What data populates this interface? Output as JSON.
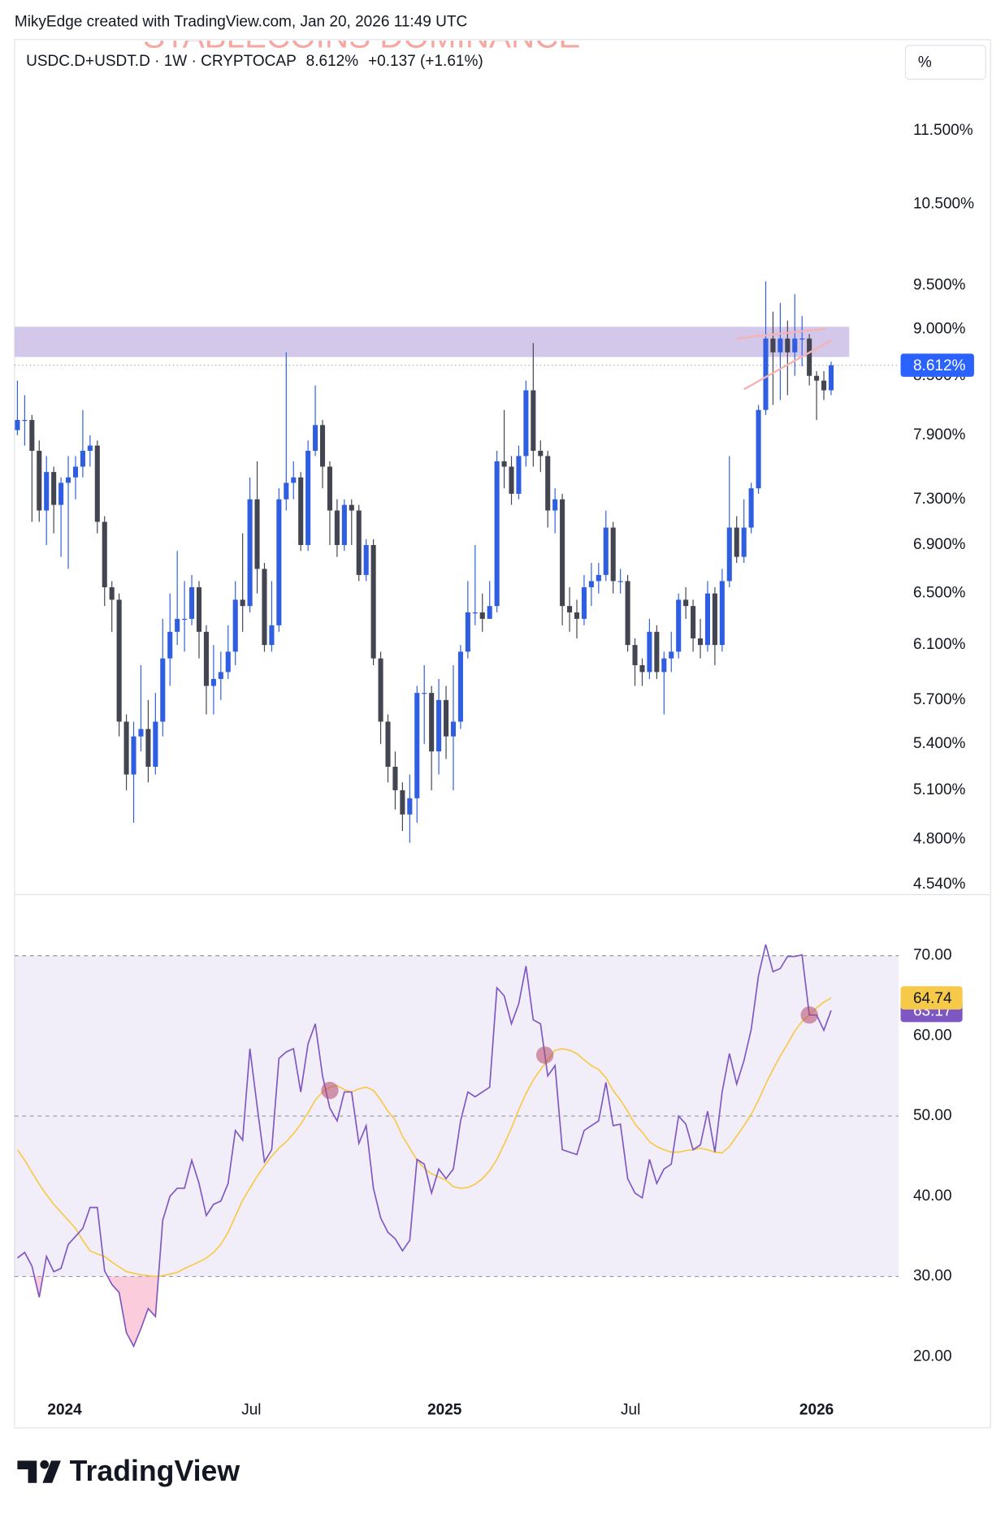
{
  "header": "MikyEdge created with TradingView.com, Jan 20, 2026 11:49 UTC",
  "watermark": "STABLECOINS DOMINANCE",
  "legend": {
    "symbol": "USDC.D+USDT.D · 1W · CRYPTOCAP",
    "last": "8.612%",
    "change": "+0.137 (+1.61%)"
  },
  "scale_button": "%",
  "brand": "TradingView",
  "chart_data": [
    {
      "type": "candlestick",
      "log_scale": true,
      "up_color": "#2f5fe0",
      "down_color": "#434651",
      "open": [
        7.95,
        8.05,
        8.05,
        7.75,
        7.2,
        7.55,
        7.25,
        7.45,
        7.5,
        7.6,
        7.75,
        7.8,
        7.1,
        6.55,
        6.45,
        5.55,
        5.2,
        5.45,
        5.5,
        5.25,
        5.55,
        6.0,
        6.2,
        6.3,
        6.3,
        6.55,
        6.2,
        5.8,
        5.85,
        5.9,
        6.05,
        6.45,
        6.4,
        7.3,
        6.7,
        6.1,
        6.25,
        7.3,
        7.45,
        7.5,
        6.9,
        7.75,
        8.0,
        7.6,
        7.2,
        6.9,
        7.25,
        7.2,
        6.65,
        6.9,
        6.0,
        5.55,
        5.25,
        5.1,
        4.95,
        5.05,
        5.75,
        5.75,
        5.35,
        5.7,
        5.45,
        5.55,
        6.05,
        6.35,
        6.35,
        6.3,
        6.4,
        7.65,
        7.6,
        7.35,
        7.7,
        8.35,
        7.75,
        7.7,
        7.2,
        7.3,
        6.4,
        6.35,
        6.3,
        6.55,
        6.6,
        6.65,
        7.05,
        6.6,
        6.6,
        6.1,
        5.95,
        5.9,
        6.2,
        5.9,
        6.0,
        6.05,
        6.45,
        6.4,
        6.15,
        6.1,
        6.5,
        6.1,
        6.6,
        7.05,
        6.8,
        7.05,
        7.4,
        8.15,
        8.9,
        8.75,
        8.9,
        8.75,
        8.9,
        8.9,
        8.5,
        8.45,
        8.35
      ],
      "high": [
        8.45,
        8.3,
        8.1,
        7.85,
        7.7,
        7.6,
        7.5,
        7.7,
        7.7,
        8.15,
        7.9,
        7.85,
        7.15,
        6.6,
        6.5,
        5.6,
        5.55,
        5.95,
        5.7,
        5.75,
        6.3,
        6.5,
        6.85,
        6.6,
        6.65,
        6.6,
        6.25,
        6.1,
        6.05,
        6.25,
        6.6,
        7.0,
        7.5,
        7.65,
        6.75,
        6.6,
        7.4,
        8.75,
        7.65,
        7.55,
        7.85,
        8.4,
        8.05,
        7.65,
        7.3,
        7.3,
        7.3,
        7.25,
        6.95,
        6.95,
        6.05,
        5.6,
        5.35,
        5.15,
        5.2,
        5.8,
        5.95,
        5.8,
        5.85,
        5.8,
        5.95,
        6.1,
        6.6,
        6.9,
        6.5,
        6.6,
        7.75,
        8.15,
        7.7,
        7.8,
        8.45,
        8.85,
        7.85,
        7.75,
        7.4,
        7.35,
        6.55,
        6.45,
        6.65,
        6.75,
        6.75,
        7.2,
        7.1,
        6.7,
        6.65,
        6.15,
        6.0,
        6.3,
        6.25,
        6.05,
        6.2,
        6.5,
        6.55,
        6.45,
        6.3,
        6.6,
        6.55,
        6.7,
        7.7,
        7.15,
        7.3,
        7.45,
        8.2,
        9.55,
        9.2,
        9.3,
        9.1,
        9.4,
        9.15,
        8.95,
        8.55,
        8.55,
        8.65
      ],
      "low": [
        7.9,
        7.8,
        7.1,
        7.1,
        6.9,
        7.0,
        6.8,
        6.7,
        7.3,
        7.5,
        7.6,
        7.0,
        6.4,
        6.2,
        5.45,
        5.1,
        4.9,
        5.35,
        5.15,
        5.2,
        5.45,
        5.8,
        6.1,
        6.05,
        6.25,
        6.0,
        5.6,
        5.6,
        5.7,
        5.85,
        5.95,
        6.2,
        6.35,
        6.5,
        6.05,
        6.05,
        6.2,
        7.2,
        7.3,
        6.85,
        6.85,
        7.7,
        7.4,
        6.9,
        6.8,
        6.85,
        6.9,
        6.6,
        6.6,
        5.95,
        5.4,
        5.15,
        4.98,
        4.85,
        4.78,
        4.9,
        5.4,
        5.1,
        5.2,
        5.3,
        5.1,
        5.5,
        6.0,
        6.25,
        6.2,
        6.3,
        6.35,
        7.4,
        7.25,
        7.3,
        7.6,
        7.6,
        7.55,
        7.05,
        7.0,
        6.25,
        6.2,
        6.15,
        6.25,
        6.4,
        6.5,
        6.6,
        6.5,
        6.5,
        6.05,
        5.8,
        5.8,
        5.85,
        5.85,
        5.6,
        5.9,
        6.0,
        6.3,
        6.05,
        6.0,
        6.05,
        5.95,
        6.05,
        6.55,
        6.75,
        6.75,
        7.0,
        7.35,
        8.1,
        8.2,
        8.25,
        8.3,
        8.5,
        8.6,
        8.4,
        8.05,
        8.25,
        8.3
      ],
      "close": [
        8.05,
        8.05,
        7.75,
        7.2,
        7.55,
        7.25,
        7.45,
        7.5,
        7.6,
        7.75,
        7.8,
        7.1,
        6.55,
        6.45,
        5.55,
        5.2,
        5.45,
        5.5,
        5.25,
        5.55,
        6.0,
        6.2,
        6.3,
        6.3,
        6.55,
        6.2,
        5.8,
        5.85,
        5.9,
        6.05,
        6.45,
        6.4,
        7.3,
        6.7,
        6.1,
        6.25,
        7.3,
        7.45,
        7.5,
        6.9,
        7.75,
        8.0,
        7.6,
        7.2,
        6.9,
        7.25,
        7.2,
        6.65,
        6.9,
        6.0,
        5.55,
        5.25,
        5.1,
        4.95,
        5.05,
        5.75,
        5.75,
        5.35,
        5.7,
        5.45,
        5.55,
        6.05,
        6.35,
        6.35,
        6.3,
        6.4,
        7.65,
        7.6,
        7.35,
        7.7,
        8.35,
        7.75,
        7.7,
        7.2,
        7.3,
        6.4,
        6.35,
        6.3,
        6.55,
        6.6,
        6.65,
        7.05,
        6.6,
        6.6,
        6.1,
        5.95,
        5.9,
        6.2,
        5.9,
        6.0,
        6.05,
        6.45,
        6.4,
        6.15,
        6.1,
        6.5,
        6.1,
        6.6,
        7.05,
        6.8,
        7.05,
        7.4,
        8.15,
        8.9,
        8.75,
        8.9,
        8.75,
        8.9,
        8.9,
        8.5,
        8.45,
        8.35,
        8.612
      ],
      "xlim": [
        -0.4,
        121.3
      ],
      "xticks": [
        {
          "value": 6.5,
          "label": "2024"
        },
        {
          "value": 32.2,
          "label": "Jul"
        },
        {
          "value": 58.8,
          "label": "2025"
        },
        {
          "value": 84.4,
          "label": "Jul"
        },
        {
          "value": 110,
          "label": "2026"
        }
      ],
      "ylim": [
        4.49,
        12.85
      ],
      "yticks": [
        {
          "value": 11.5,
          "label": "11.500%"
        },
        {
          "value": 10.5,
          "label": "10.500%"
        },
        {
          "value": 9.5,
          "label": "9.500%"
        },
        {
          "value": 9.0,
          "label": "9.000%"
        },
        {
          "value": 8.5,
          "label": "8.500%"
        },
        {
          "value": 7.9,
          "label": "7.900%"
        },
        {
          "value": 7.3,
          "label": "7.300%"
        },
        {
          "value": 6.9,
          "label": "6.900%"
        },
        {
          "value": 6.5,
          "label": "6.500%"
        },
        {
          "value": 6.1,
          "label": "6.100%"
        },
        {
          "value": 5.7,
          "label": "5.700%"
        },
        {
          "value": 5.4,
          "label": "5.400%"
        },
        {
          "value": 5.1,
          "label": "5.100%"
        },
        {
          "value": 4.8,
          "label": "4.800%"
        },
        {
          "value": 4.54,
          "label": "4.540%"
        }
      ],
      "zone": {
        "xlim": [
          -0.4,
          114.5
        ],
        "ylim": [
          8.7,
          9.03
        ],
        "color": "#d1c4e9"
      },
      "wedge": [
        {
          "x": [
            99,
            111.3
          ],
          "y": [
            8.9,
            9.01
          ]
        },
        {
          "x": [
            100,
            112
          ],
          "y": [
            8.36,
            8.88
          ]
        }
      ],
      "wedge_color": "#f6b3b3",
      "last_color": "#2962ff"
    },
    {
      "type": "line",
      "series": [
        {
          "color": "#7e57c2",
          "values": [
            32.3,
            33,
            31.3,
            27.4,
            32.5,
            30.6,
            31,
            34,
            35,
            36,
            38.6,
            38.6,
            30.7,
            29,
            28,
            23,
            21.3,
            23.5,
            26,
            25,
            37,
            40,
            41,
            41,
            44.5,
            41.6,
            37.6,
            39,
            39.4,
            41.6,
            48.2,
            47,
            58.4,
            51.2,
            44.3,
            45.8,
            57.2,
            58,
            58.4,
            53,
            59,
            61.5,
            55,
            51,
            49.4,
            53,
            53,
            46.6,
            48.8,
            41,
            37.3,
            35.5,
            34.7,
            33.2,
            34.5,
            44.6,
            44,
            40.4,
            43.4,
            42.2,
            43.4,
            49.4,
            53,
            52.4,
            53,
            53.6,
            66,
            65,
            61.5,
            64,
            68.7,
            62,
            61.5,
            55,
            56.3,
            45.8,
            45.5,
            45.2,
            48.2,
            48.8,
            49.4,
            54.2,
            48.8,
            49,
            42.2,
            40.4,
            39.8,
            44.6,
            41.6,
            43.4,
            44,
            50,
            49,
            45.8,
            46.4,
            50.6,
            45.5,
            53,
            57.8,
            54,
            56.9,
            60.8,
            67.5,
            71.4,
            68,
            68.4,
            69.9,
            69.9,
            70.1,
            62.6,
            62.6,
            60.7,
            63.17
          ]
        },
        {
          "color": "#f7c948",
          "values": [
            45.8,
            44.5,
            43,
            41.5,
            40.2,
            39,
            38,
            37,
            36,
            34.5,
            33.2,
            32.8,
            32.5,
            31.8,
            31.2,
            30.6,
            30.4,
            30.2,
            30.1,
            30,
            30.1,
            30.3,
            30.5,
            31,
            31.4,
            31.8,
            32.3,
            33,
            34,
            35.5,
            37.5,
            39.5,
            41,
            42.5,
            43.8,
            45,
            46,
            46.8,
            47.8,
            49,
            50.4,
            52,
            53,
            53.6,
            53.8,
            53.3,
            53,
            53.4,
            53.6,
            53.2,
            52,
            50.6,
            49.5,
            47.5,
            46,
            44.5,
            43.5,
            42.8,
            42.4,
            42,
            41.2,
            41,
            41.1,
            41.5,
            42.2,
            43.2,
            44.6,
            46.5,
            48.5,
            50.8,
            52.8,
            54.5,
            55.8,
            57,
            58.2,
            58.4,
            58.2,
            57.8,
            57,
            56.3,
            55.8,
            54.8,
            53.2,
            52,
            50.6,
            49,
            48,
            46.8,
            46.2,
            45.8,
            45.5,
            45.5,
            45.7,
            45.8,
            46,
            45.8,
            45.5,
            45.4,
            46.2,
            47.5,
            48.8,
            50.2,
            52,
            54,
            55.8,
            57.5,
            59,
            60.6,
            61.8,
            62.6,
            63.5,
            64.2,
            64.74
          ]
        }
      ],
      "ylim": [
        15.1,
        77.5
      ],
      "yticks": [
        {
          "value": 70,
          "label": "70.00"
        },
        {
          "value": 60,
          "label": "60.00"
        },
        {
          "value": 50,
          "label": "50.00"
        },
        {
          "value": 40,
          "label": "40.00"
        },
        {
          "value": 30,
          "label": "30.00"
        },
        {
          "value": 20,
          "label": "20.00"
        }
      ],
      "band": [
        30,
        70
      ],
      "band_color": "#7e57c2",
      "levels": [
        30,
        50,
        70
      ],
      "oversold_color": "#f48fb1",
      "signals": {
        "x": [
          43,
          72.6,
          109
        ],
        "y": [
          53.2,
          57.6,
          62.6
        ],
        "color": "#b24a6e"
      }
    }
  ]
}
